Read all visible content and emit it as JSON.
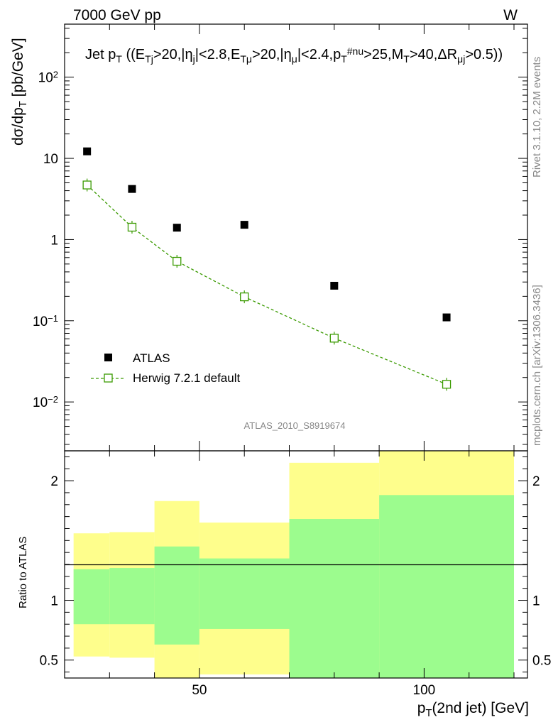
{
  "header": {
    "left_label": "7000 GeV pp",
    "right_label": "W"
  },
  "side_labels": {
    "rivet": "Rivet 3.1.10,  2.2M events",
    "mcplots": "mcplots.cern.ch [arXiv:1306.3436]"
  },
  "analysis_id": "ATLAS_2010_S8919674",
  "chart_data": [
    {
      "type": "scatter",
      "title": "Jet p_T ((E_Tj>20,|η_j|<2.8,E_Tμ>20,|η_μ|<2.4,p_T^#nu>25,M_T>40,ΔR_μj>0.5))",
      "ylabel": "dσ/dp_T [pb/GeV]",
      "yscale": "log",
      "xlim": [
        20,
        123
      ],
      "ylim": [
        0.0025,
        450
      ],
      "ytick_labels": [
        "10^-2",
        "10^-1",
        "1",
        "10",
        "10^2"
      ],
      "legend": {
        "placement": "bottom-left"
      },
      "series": [
        {
          "name": "ATLAS",
          "marker": "filled-square",
          "color": "#000000",
          "x": [
            25,
            35,
            45,
            60,
            80,
            105
          ],
          "y": [
            12.2,
            4.2,
            1.4,
            1.52,
            0.27,
            0.11
          ]
        },
        {
          "name": "Herwig 7.2.1 default",
          "marker": "open-square",
          "line": "dashed",
          "color": "#3a9a00",
          "x": [
            25,
            35,
            45,
            60,
            80,
            105
          ],
          "y": [
            4.7,
            1.42,
            0.54,
            0.197,
            0.061,
            0.0165
          ]
        }
      ]
    },
    {
      "type": "area",
      "ylabel": "Ratio to ATLAS",
      "xlabel": "p_T(2nd jet) [GeV]",
      "xlim": [
        20,
        123
      ],
      "ylim": [
        0.35,
        2.25
      ],
      "xtick_labels": [
        "50",
        "100"
      ],
      "ytick_labels": [
        "0.5",
        "1",
        "2"
      ],
      "reference_line": 1,
      "bands": [
        {
          "x_low": 22,
          "x_high": 30,
          "inner": [
            0.8,
            1.26
          ],
          "outer": [
            0.53,
            1.56
          ]
        },
        {
          "x_low": 30,
          "x_high": 40,
          "inner": [
            0.8,
            1.27
          ],
          "outer": [
            0.52,
            1.57
          ]
        },
        {
          "x_low": 40,
          "x_high": 50,
          "inner": [
            0.63,
            1.45
          ],
          "outer": [
            0.35,
            1.83
          ]
        },
        {
          "x_low": 50,
          "x_high": 70,
          "inner": [
            0.76,
            1.35
          ],
          "outer": [
            0.38,
            1.65
          ]
        },
        {
          "x_low": 70,
          "x_high": 90,
          "inner": [
            0.35,
            1.68
          ],
          "outer": [
            0.35,
            2.15
          ]
        },
        {
          "x_low": 90,
          "x_high": 120,
          "inner": [
            0.35,
            1.88
          ],
          "outer": [
            0.35,
            2.25
          ]
        }
      ],
      "band_colors": {
        "inner": "#9cfc8e",
        "outer": "#fefe8c"
      }
    }
  ]
}
